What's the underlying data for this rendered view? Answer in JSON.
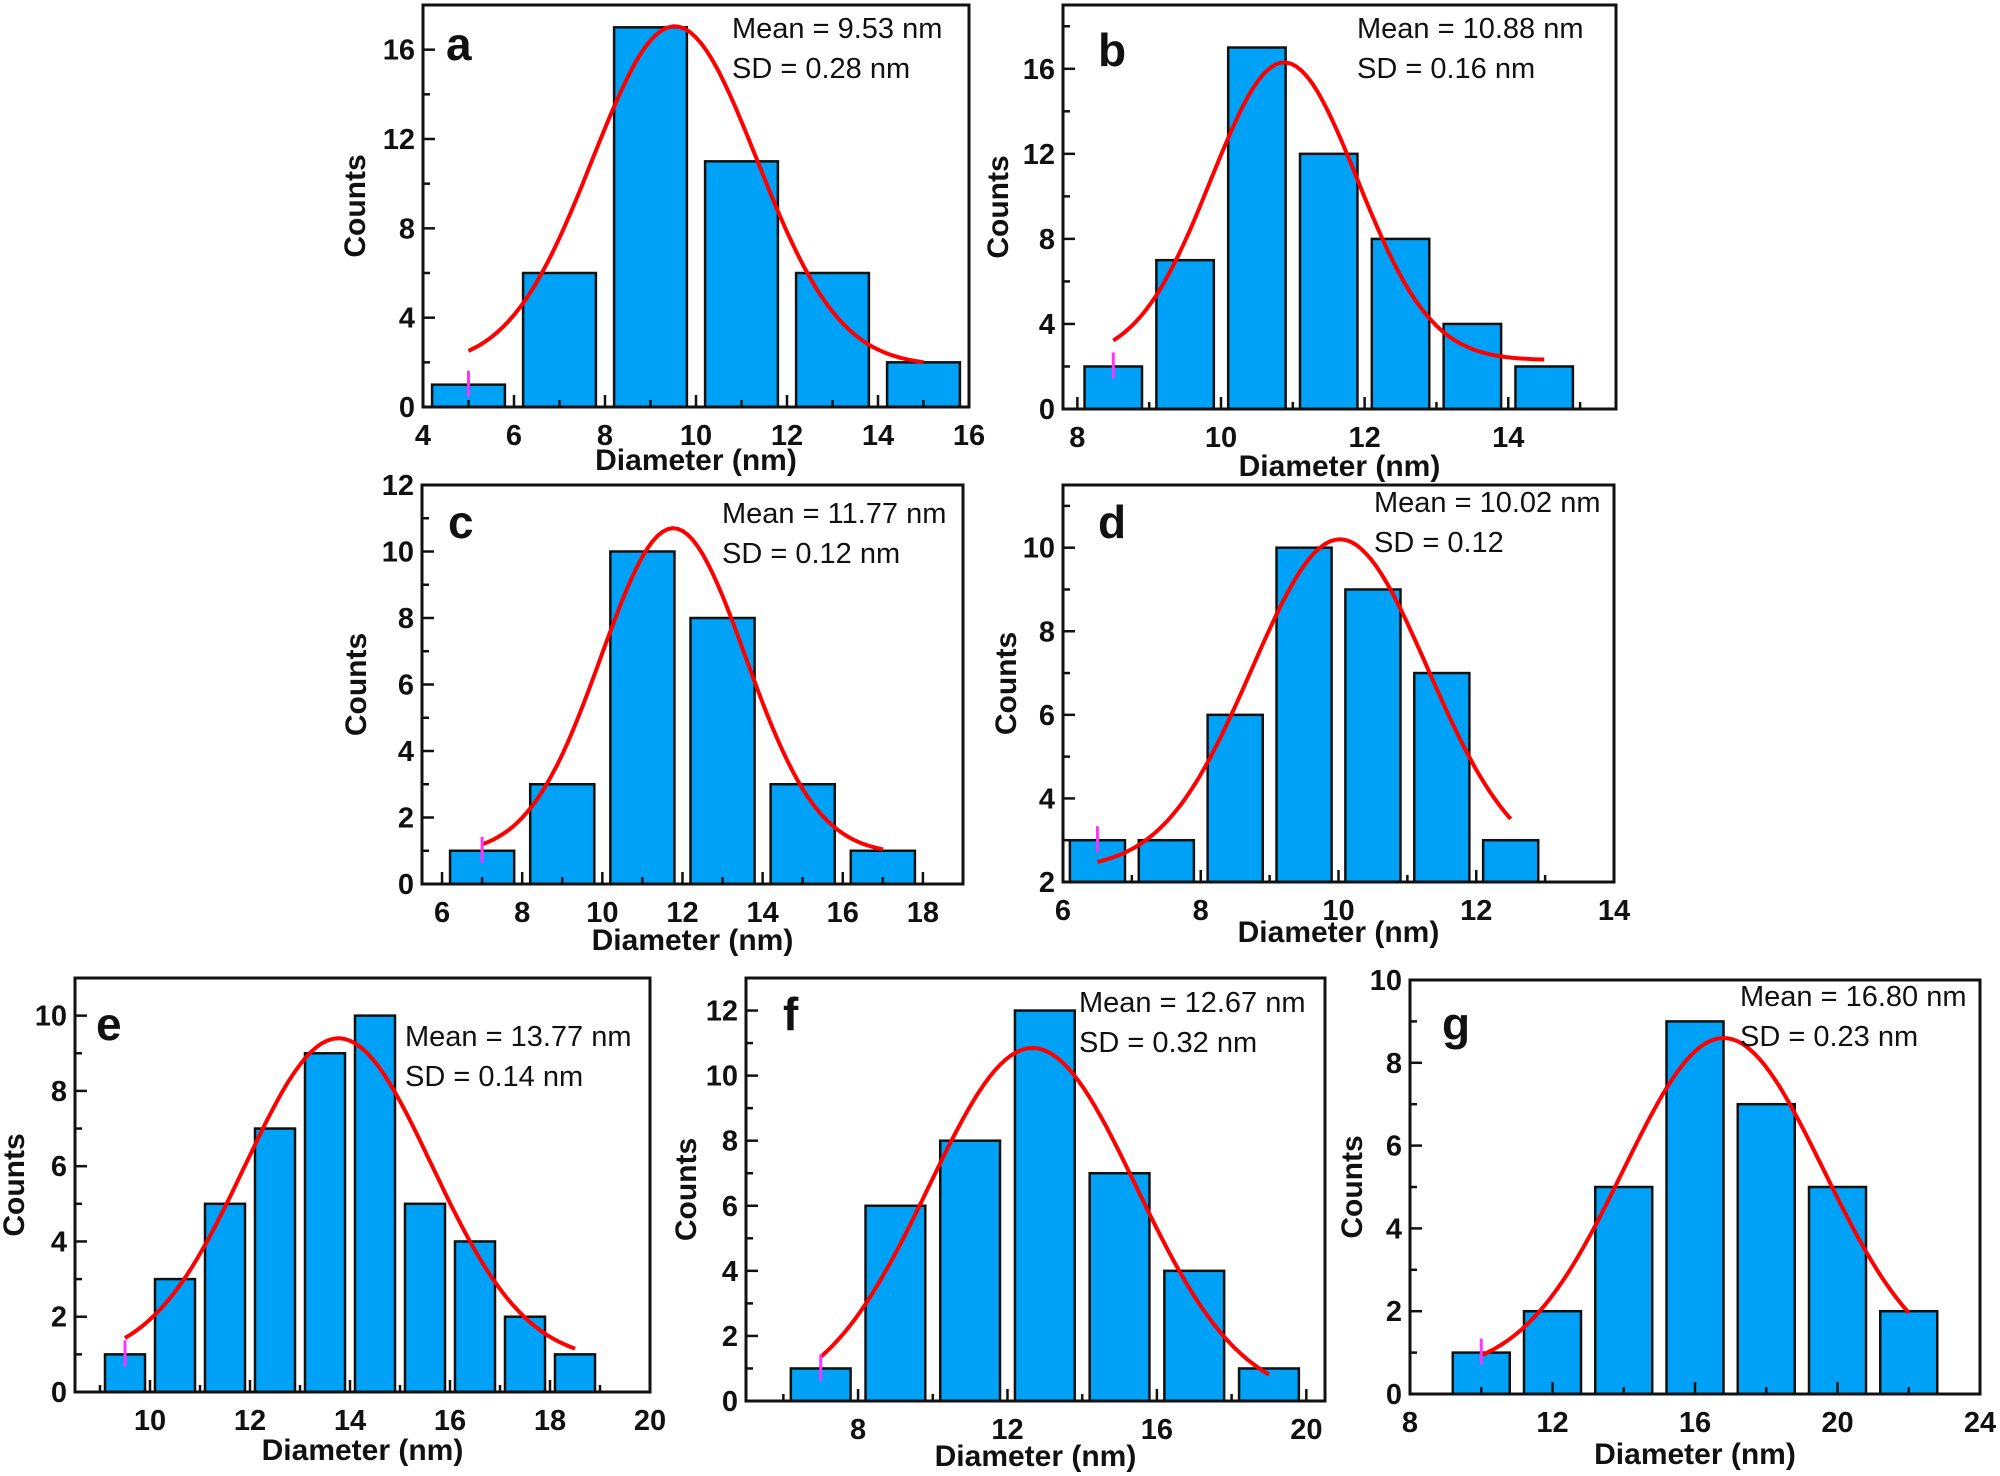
{
  "figure": {
    "colors": {
      "bar": "#00A2F8",
      "fit": "#FF0000",
      "marker": "#FF33FF",
      "axis": "#111111"
    }
  },
  "chart_data": [
    {
      "type": "bar",
      "panel": "a",
      "title": "",
      "xlabel": "Diameter (nm)",
      "ylabel": "Counts",
      "annotations": [
        "Mean = 9.53 nm",
        "SD = 0.28 nm"
      ],
      "x": [
        5,
        7,
        9,
        11,
        13,
        15
      ],
      "values": [
        1,
        6,
        17,
        11,
        6,
        2
      ],
      "bin_width": 2,
      "xlim": [
        4,
        16
      ],
      "ylim": [
        0,
        18
      ],
      "xticks": [
        4,
        6,
        8,
        10,
        12,
        14,
        16
      ],
      "yticks": [
        0,
        4,
        8,
        12,
        16
      ],
      "fit": {
        "type": "gaussian",
        "xc": 9.53,
        "A": 15.2,
        "w": 1.81,
        "y0": 1.85,
        "x_range": [
          5,
          15
        ]
      },
      "grid": false
    },
    {
      "type": "bar",
      "panel": "b",
      "title": "",
      "xlabel": "Diameter (nm)",
      "ylabel": "Counts",
      "annotations": [
        "Mean = 10.88 nm",
        "SD = 0.16 nm"
      ],
      "x": [
        8.5,
        9.5,
        10.5,
        11.5,
        12.5,
        13.5,
        14.5
      ],
      "values": [
        2,
        7,
        17,
        12,
        8,
        4,
        2
      ],
      "bin_width": 1,
      "xlim": [
        7.8,
        15.5
      ],
      "ylim": [
        0,
        19
      ],
      "xticks": [
        8,
        10,
        12,
        14
      ],
      "yticks": [
        0,
        4,
        8,
        12,
        16
      ],
      "fit": {
        "type": "gaussian",
        "xc": 10.88,
        "A": 14.0,
        "w": 1.02,
        "y0": 2.3,
        "x_range": [
          8.5,
          14.5
        ]
      },
      "grid": false
    },
    {
      "type": "bar",
      "panel": "c",
      "title": "",
      "xlabel": "Diameter (nm)",
      "ylabel": "Counts",
      "annotations": [
        "Mean = 11.77 nm",
        "SD = 0.12 nm"
      ],
      "x": [
        7,
        9,
        11,
        13,
        15,
        17
      ],
      "values": [
        1,
        3,
        10,
        8,
        3,
        1
      ],
      "bin_width": 2,
      "xlim": [
        5.5,
        19
      ],
      "ylim": [
        0,
        12
      ],
      "xticks": [
        6,
        8,
        10,
        12,
        14,
        16,
        18
      ],
      "yticks": [
        0,
        2,
        4,
        6,
        8,
        10,
        12
      ],
      "fit": {
        "type": "gaussian",
        "xc": 11.77,
        "A": 9.8,
        "w": 1.8,
        "y0": 0.9,
        "x_range": [
          7,
          17
        ]
      },
      "grid": false
    },
    {
      "type": "bar",
      "panel": "d",
      "title": "",
      "xlabel": "Diameter (nm)",
      "ylabel": "Counts",
      "annotations": [
        "Mean = 10.02 nm",
        "SD = 0.12"
      ],
      "x": [
        6.5,
        7.5,
        8.5,
        9.5,
        10.5,
        11.5,
        12.5
      ],
      "values": [
        3,
        3,
        6,
        10,
        9,
        7,
        3
      ],
      "bin_width": 1,
      "xlim": [
        6,
        14
      ],
      "ylim": [
        2,
        11.5
      ],
      "xticks": [
        6,
        8,
        10,
        12,
        14
      ],
      "yticks": [
        2,
        4,
        6,
        8,
        10
      ],
      "fit": {
        "type": "gaussian",
        "xc": 10.02,
        "A": 7.9,
        "w": 1.28,
        "y0": 2.3,
        "x_range": [
          6.5,
          12.5
        ]
      },
      "grid": false
    },
    {
      "type": "bar",
      "panel": "e",
      "title": "",
      "xlabel": "Diameter (nm)",
      "ylabel": "Counts",
      "annotations": [
        "Mean = 13.77 nm",
        "SD = 0.14 nm"
      ],
      "x": [
        9.5,
        10.5,
        11.5,
        12.5,
        13.5,
        14.5,
        15.5,
        16.5,
        17.5,
        18.5
      ],
      "values": [
        1,
        3,
        5,
        7,
        9,
        10,
        5,
        4,
        2,
        1
      ],
      "bin_width": 1,
      "xlim": [
        8.5,
        20
      ],
      "ylim": [
        0,
        11
      ],
      "xticks": [
        10,
        12,
        14,
        16,
        18,
        20
      ],
      "yticks": [
        0,
        2,
        4,
        6,
        8,
        10
      ],
      "fit": {
        "type": "gaussian",
        "xc": 13.77,
        "A": 8.6,
        "w": 1.87,
        "y0": 0.8,
        "x_range": [
          9.5,
          18.5
        ]
      },
      "grid": false
    },
    {
      "type": "bar",
      "panel": "f",
      "title": "",
      "xlabel": "Diameter (nm)",
      "ylabel": "Counts",
      "annotations": [
        "Mean = 12.67 nm",
        "SD = 0.32 nm"
      ],
      "x": [
        7,
        9,
        11,
        13,
        15,
        17,
        19
      ],
      "values": [
        1,
        6,
        8,
        12,
        7,
        4,
        1
      ],
      "bin_width": 2,
      "xlim": [
        5,
        20.5
      ],
      "ylim": [
        0,
        13
      ],
      "xticks": [
        8,
        12,
        16,
        20
      ],
      "yticks": [
        0,
        2,
        4,
        6,
        8,
        10,
        12
      ],
      "fit": {
        "type": "gaussian",
        "xc": 12.67,
        "A": 10.85,
        "w": 2.78,
        "y0": 0,
        "x_range": [
          7,
          19
        ]
      },
      "grid": false
    },
    {
      "type": "bar",
      "panel": "g",
      "title": "",
      "xlabel": "Diameter (nm)",
      "ylabel": "Counts",
      "annotations": [
        "Mean = 16.80 nm",
        "SD = 0.23 nm"
      ],
      "x": [
        10,
        12,
        14,
        16,
        18,
        20,
        22
      ],
      "values": [
        1,
        2,
        5,
        9,
        7,
        5,
        2
      ],
      "bin_width": 2,
      "xlim": [
        8,
        24
      ],
      "ylim": [
        0,
        10
      ],
      "xticks": [
        8,
        12,
        16,
        20,
        24
      ],
      "yticks": [
        0,
        2,
        4,
        6,
        8,
        10
      ],
      "fit": {
        "type": "gaussian",
        "xc": 16.8,
        "A": 8.1,
        "w": 2.81,
        "y0": 0.5,
        "x_range": [
          10,
          22
        ]
      },
      "grid": false
    }
  ]
}
